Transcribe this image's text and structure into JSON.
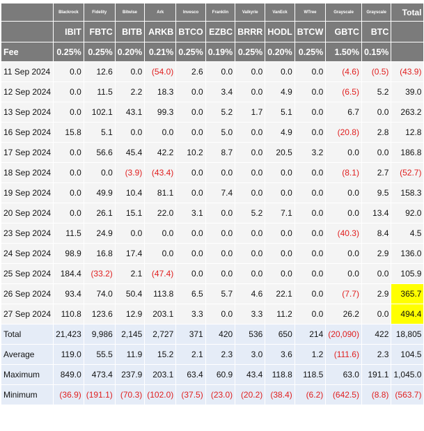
{
  "header": {
    "providers": [
      "Blackrock",
      "Fidelity",
      "Bitwise",
      "Ark",
      "Invesco",
      "Franklin",
      "Valkyrie",
      "VanEck",
      "WTree",
      "Grayscale",
      "Grayscale"
    ],
    "total_label": "Total",
    "tickers": [
      "IBIT",
      "FBTC",
      "BITB",
      "ARKB",
      "BTCO",
      "EZBC",
      "BRRR",
      "HODL",
      "BTCW",
      "GBTC",
      "BTC"
    ],
    "fee_label": "Fee",
    "fees": [
      "0.25%",
      "0.25%",
      "0.20%",
      "0.21%",
      "0.25%",
      "0.19%",
      "0.25%",
      "0.20%",
      "0.25%",
      "1.50%",
      "0.15%"
    ]
  },
  "rows": [
    {
      "date": "11 Sep 2024",
      "cells": [
        "0.0",
        "12.6",
        "0.0",
        "(54.0)",
        "2.6",
        "0.0",
        "0.0",
        "0.0",
        "0.0",
        "(4.6)",
        "(0.5)",
        "(43.9)"
      ]
    },
    {
      "date": "12 Sep 2024",
      "cells": [
        "0.0",
        "11.5",
        "2.2",
        "18.3",
        "0.0",
        "3.4",
        "0.0",
        "4.9",
        "0.0",
        "(6.5)",
        "5.2",
        "39.0"
      ]
    },
    {
      "date": "13 Sep 2024",
      "cells": [
        "0.0",
        "102.1",
        "43.1",
        "99.3",
        "0.0",
        "5.2",
        "1.7",
        "5.1",
        "0.0",
        "6.7",
        "0.0",
        "263.2"
      ]
    },
    {
      "date": "16 Sep 2024",
      "cells": [
        "15.8",
        "5.1",
        "0.0",
        "0.0",
        "0.0",
        "5.0",
        "0.0",
        "4.9",
        "0.0",
        "(20.8)",
        "2.8",
        "12.8"
      ]
    },
    {
      "date": "17 Sep 2024",
      "cells": [
        "0.0",
        "56.6",
        "45.4",
        "42.2",
        "10.2",
        "8.7",
        "0.0",
        "20.5",
        "3.2",
        "0.0",
        "0.0",
        "186.8"
      ]
    },
    {
      "date": "18 Sep 2024",
      "cells": [
        "0.0",
        "0.0",
        "(3.9)",
        "(43.4)",
        "0.0",
        "0.0",
        "0.0",
        "0.0",
        "0.0",
        "(8.1)",
        "2.7",
        "(52.7)"
      ]
    },
    {
      "date": "19 Sep 2024",
      "cells": [
        "0.0",
        "49.9",
        "10.4",
        "81.1",
        "0.0",
        "7.4",
        "0.0",
        "0.0",
        "0.0",
        "0.0",
        "9.5",
        "158.3"
      ]
    },
    {
      "date": "20 Sep 2024",
      "cells": [
        "0.0",
        "26.1",
        "15.1",
        "22.0",
        "3.1",
        "0.0",
        "5.2",
        "7.1",
        "0.0",
        "0.0",
        "13.4",
        "92.0"
      ]
    },
    {
      "date": "23 Sep 2024",
      "cells": [
        "11.5",
        "24.9",
        "0.0",
        "0.0",
        "0.0",
        "0.0",
        "0.0",
        "0.0",
        "0.0",
        "(40.3)",
        "8.4",
        "4.5"
      ]
    },
    {
      "date": "24 Sep 2024",
      "cells": [
        "98.9",
        "16.8",
        "17.4",
        "0.0",
        "0.0",
        "0.0",
        "0.0",
        "0.0",
        "0.0",
        "0.0",
        "2.9",
        "136.0"
      ]
    },
    {
      "date": "25 Sep 2024",
      "cells": [
        "184.4",
        "(33.2)",
        "2.1",
        "(47.4)",
        "0.0",
        "0.0",
        "0.0",
        "0.0",
        "0.0",
        "0.0",
        "0.0",
        "105.9"
      ]
    },
    {
      "date": "26 Sep 2024",
      "cells": [
        "93.4",
        "74.0",
        "50.4",
        "113.8",
        "6.5",
        "5.7",
        "4.6",
        "22.1",
        "0.0",
        "(7.7)",
        "2.9",
        "365.7"
      ],
      "highlight_total": true
    },
    {
      "date": "27 Sep 2024",
      "cells": [
        "110.8",
        "123.6",
        "12.9",
        "203.1",
        "3.3",
        "0.0",
        "3.3",
        "11.2",
        "0.0",
        "26.2",
        "0.0",
        "494.4"
      ],
      "highlight_total": true
    }
  ],
  "summary": [
    {
      "label": "Total",
      "cells": [
        "21,423",
        "9,986",
        "2,145",
        "2,727",
        "371",
        "420",
        "536",
        "650",
        "214",
        "(20,090)",
        "422",
        "18,805"
      ]
    },
    {
      "label": "Average",
      "cells": [
        "119.0",
        "55.5",
        "11.9",
        "15.2",
        "2.1",
        "2.3",
        "3.0",
        "3.6",
        "1.2",
        "(111.6)",
        "2.3",
        "104.5"
      ]
    },
    {
      "label": "Maximum",
      "cells": [
        "849.0",
        "473.4",
        "237.9",
        "203.1",
        "63.4",
        "60.9",
        "43.4",
        "118.8",
        "118.5",
        "63.0",
        "191.1",
        "1,045.0"
      ]
    },
    {
      "label": "Minimum",
      "cells": [
        "(36.9)",
        "(191.1)",
        "(70.3)",
        "(102.0)",
        "(37.5)",
        "(23.0)",
        "(20.2)",
        "(38.4)",
        "(6.2)",
        "(642.5)",
        "(8.8)",
        "(563.7)"
      ]
    }
  ],
  "colors": {
    "header_bg": "#7b7b7b",
    "row_bg": "#f4f4f4",
    "summary_bg": "#e5ecf7",
    "negative": "#e01e1e",
    "highlight": "#ffff00"
  }
}
